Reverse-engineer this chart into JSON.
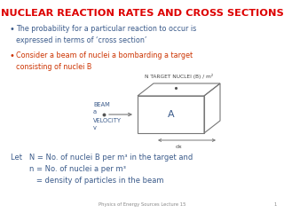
{
  "title": "NUCLEAR REACTION RATES AND CROSS SECTIONS",
  "title_color": "#dd0000",
  "bg_color": "#ffffff",
  "bullet1": "The probability for a particular reaction to occur is\nexpressed in terms of ‘cross section’",
  "bullet2": "Consider a beam of nuclei a bombarding a target\nconsisting of nuclei B",
  "bullet1_color": "#3a5a8a",
  "bullet2_color": "#cc3300",
  "diagram_label_top": "N TARGET NUCLEI (B) / m²",
  "diagram_label_A": "A",
  "diagram_label_dx": "dx",
  "footnote": "Physics of Energy Sources Lecture 15",
  "footnote_page": "1",
  "body_color": "#3a5a8a",
  "let_text_line1": "Let   N = No. of nuclei B per m³ in the target and",
  "let_text_line2": "        n = No. of nuclei a per m³",
  "let_text_line3": "           = density of particles in the beam"
}
